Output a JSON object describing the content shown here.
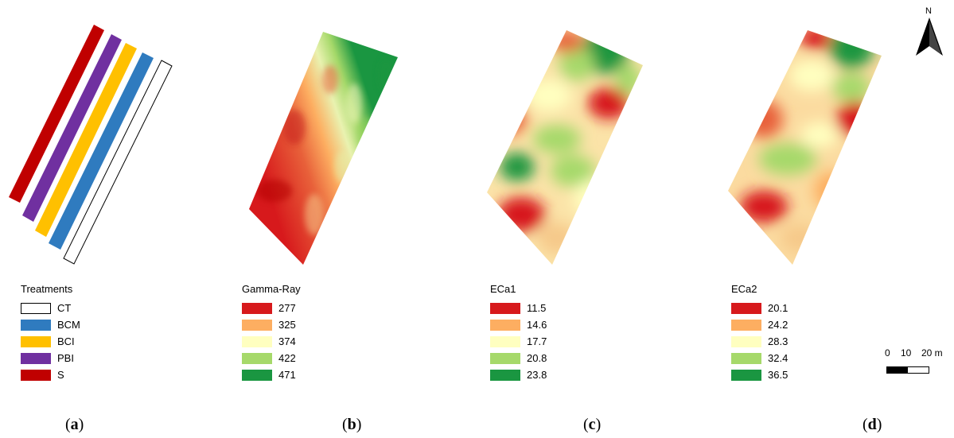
{
  "panels": [
    {
      "id": "a",
      "label_open": "(",
      "label_letter": "a",
      "label_close": ")"
    },
    {
      "id": "b",
      "label_open": "(",
      "label_letter": "b",
      "label_close": ")"
    },
    {
      "id": "c",
      "label_open": "(",
      "label_letter": "c",
      "label_close": ")"
    },
    {
      "id": "d",
      "label_open": "(",
      "label_letter": "d",
      "label_close": ")"
    }
  ],
  "treatments": {
    "title": "Treatments",
    "items": [
      {
        "label": "CT",
        "color": "#ffffff",
        "outline": "#000000"
      },
      {
        "label": "BCM",
        "color": "#2f7bbf"
      },
      {
        "label": "BCI",
        "color": "#ffc000"
      },
      {
        "label": "PBI",
        "color": "#7030a0"
      },
      {
        "label": "S",
        "color": "#c00000"
      }
    ]
  },
  "gamma": {
    "title": "Gamma-Ray",
    "items": [
      {
        "label": "277",
        "color": "#d7191c"
      },
      {
        "label": "325",
        "color": "#fdae61"
      },
      {
        "label": "374",
        "color": "#ffffc0"
      },
      {
        "label": "422",
        "color": "#a6d96a"
      },
      {
        "label": "471",
        "color": "#1a9641"
      }
    ]
  },
  "eca1": {
    "title": "ECa1",
    "items": [
      {
        "label": "11.5",
        "color": "#d7191c"
      },
      {
        "label": "14.6",
        "color": "#fdae61"
      },
      {
        "label": "17.7",
        "color": "#ffffc0"
      },
      {
        "label": "20.8",
        "color": "#a6d96a"
      },
      {
        "label": "23.8",
        "color": "#1a9641"
      }
    ]
  },
  "eca2": {
    "title": "ECa2",
    "items": [
      {
        "label": "20.1",
        "color": "#d7191c"
      },
      {
        "label": "24.2",
        "color": "#fdae61"
      },
      {
        "label": "28.3",
        "color": "#ffffc0"
      },
      {
        "label": "32.4",
        "color": "#a6d96a"
      },
      {
        "label": "36.5",
        "color": "#1a9641"
      }
    ]
  },
  "scale_bar": {
    "ticks": [
      "0",
      "10",
      "20 m"
    ]
  },
  "north_arrow": {
    "label": "N",
    "icon": "north-arrow-icon"
  }
}
